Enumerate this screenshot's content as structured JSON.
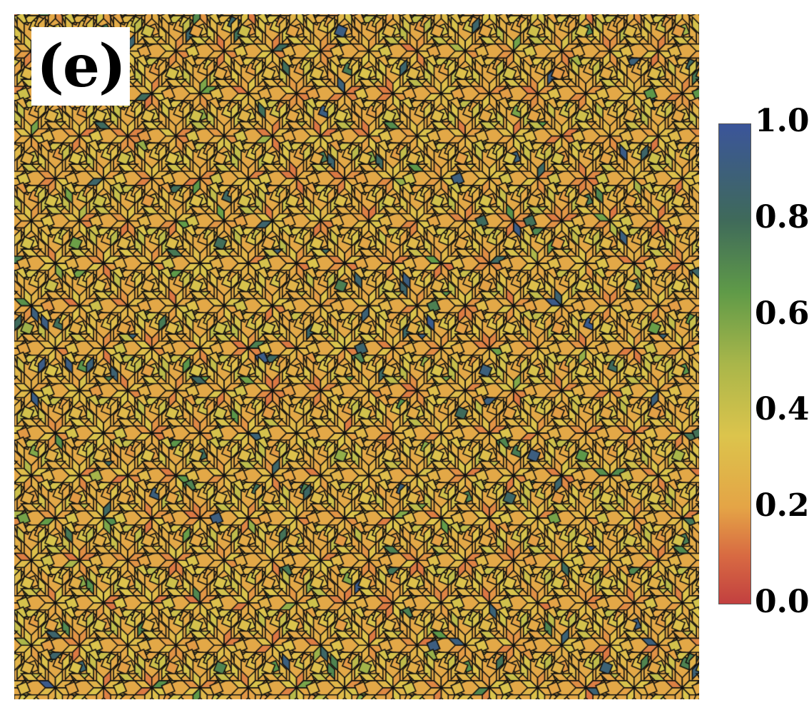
{
  "panel_label": "(e)",
  "figure": {
    "description_kind": "quasiperiodic rhombus tiling colored by scalar field",
    "tile_edge_color": "#000000",
    "dominant_fill": "#e8893a"
  },
  "colorbar": {
    "min": 0.0,
    "max": 1.0,
    "tick_labels": [
      "1.0",
      "0.8",
      "0.6",
      "0.4",
      "0.2",
      "0.0"
    ],
    "tick_values": [
      1.0,
      0.8,
      0.6,
      0.4,
      0.2,
      0.0
    ],
    "colormap_stops": [
      {
        "value": 0.0,
        "color": "#c24040"
      },
      {
        "value": 0.1,
        "color": "#d86a42"
      },
      {
        "value": 0.2,
        "color": "#e4a446"
      },
      {
        "value": 0.35,
        "color": "#dcc44c"
      },
      {
        "value": 0.5,
        "color": "#a9b64a"
      },
      {
        "value": 0.65,
        "color": "#5f9a48"
      },
      {
        "value": 0.8,
        "color": "#3f6a5a"
      },
      {
        "value": 1.0,
        "color": "#3b559a"
      }
    ]
  }
}
